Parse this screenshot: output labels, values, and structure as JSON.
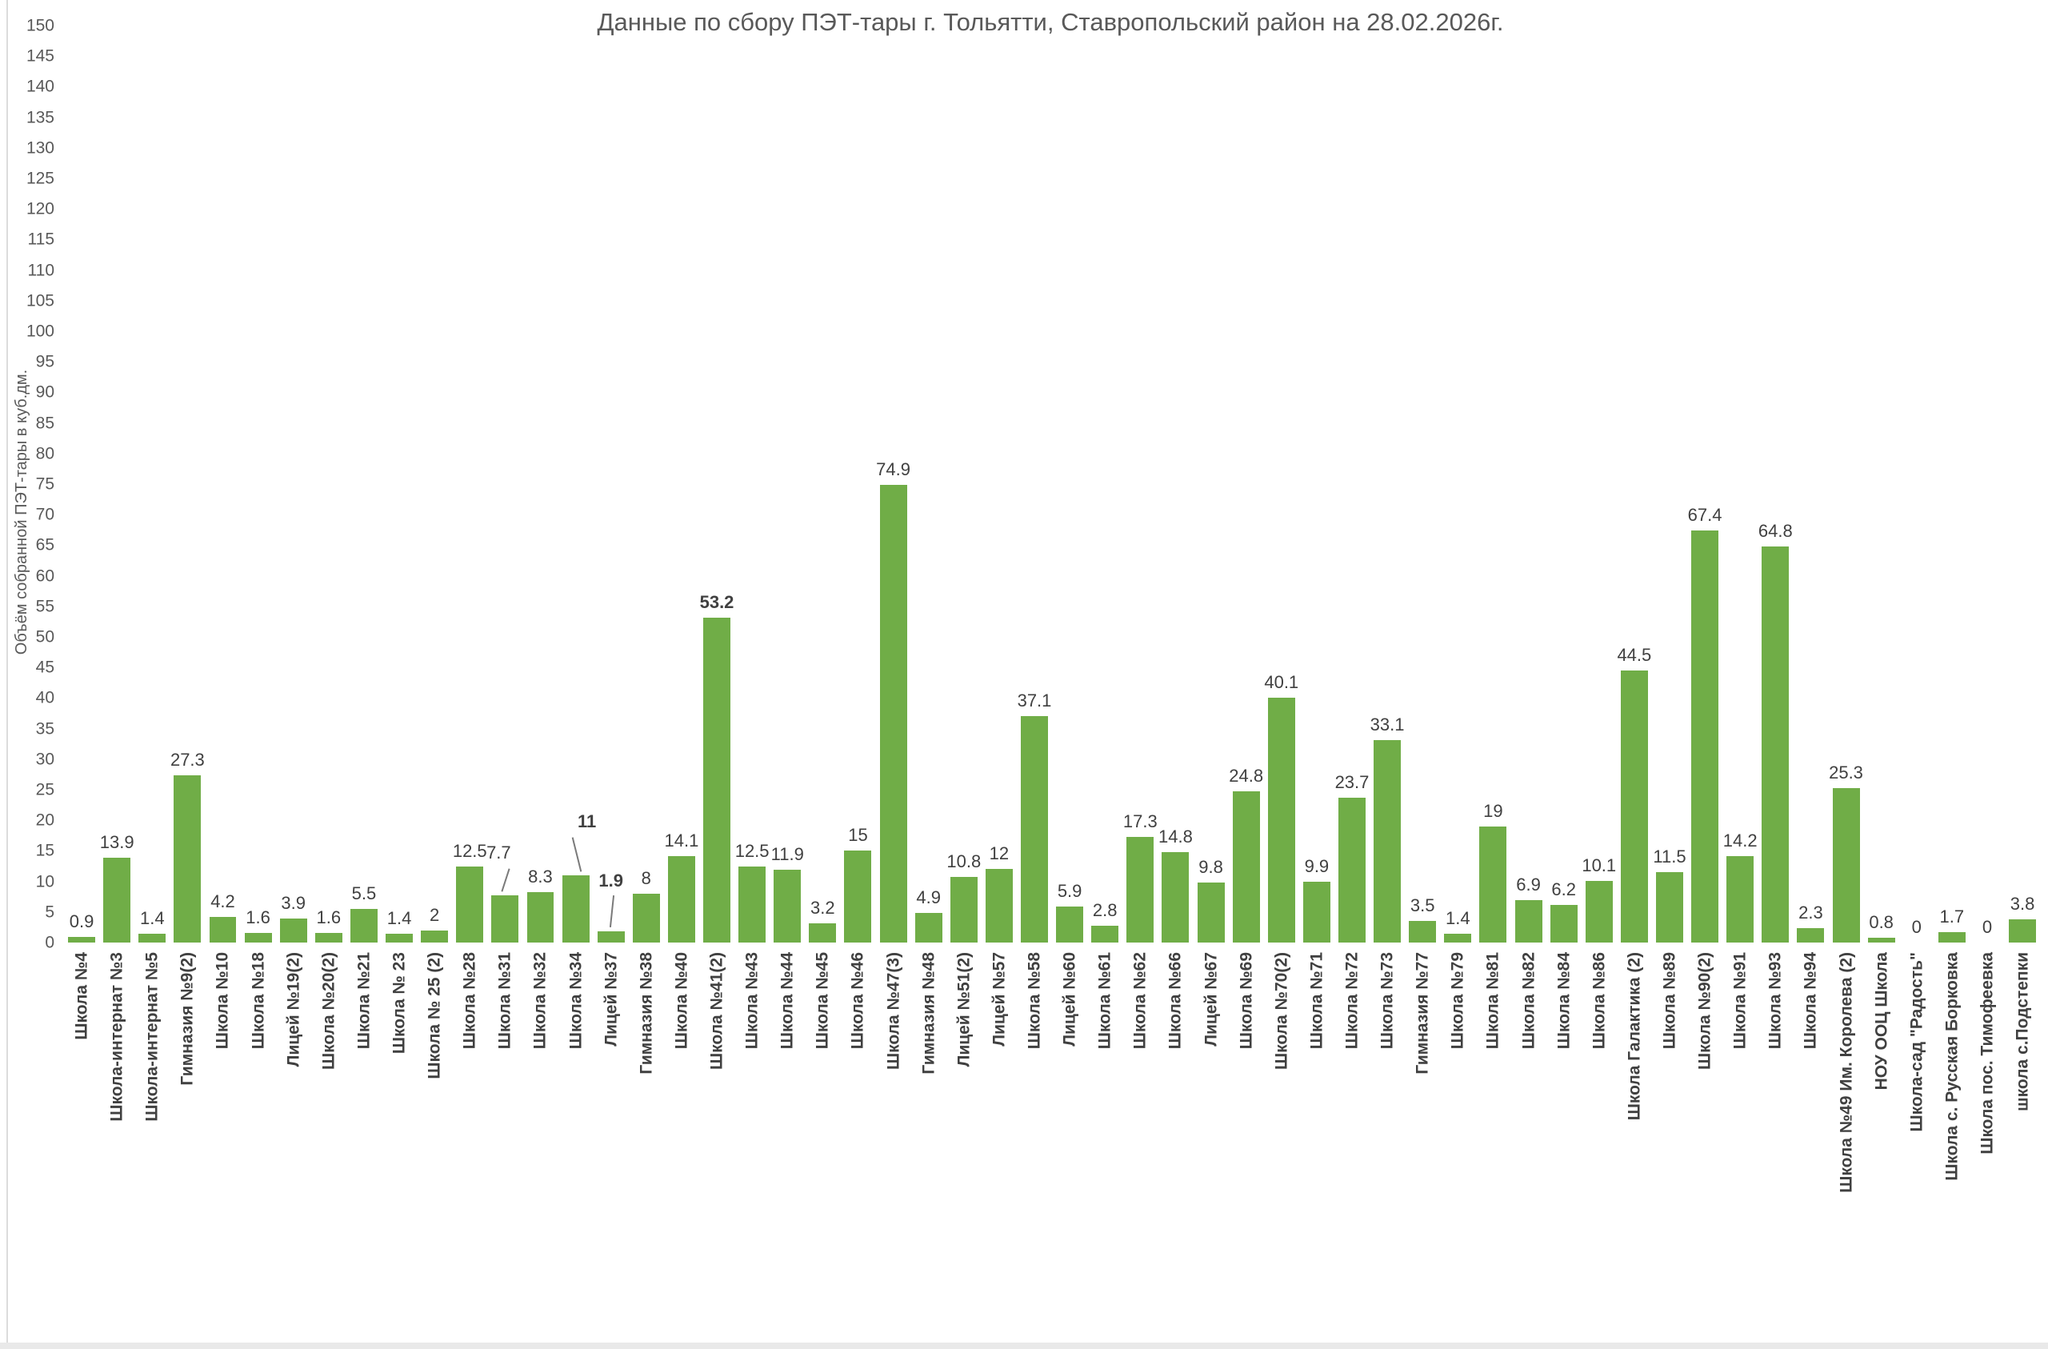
{
  "title": "Данные по сбору ПЭТ-тары г. Тольятти, Ставропольский район на 28.02.2026г.",
  "y_axis": {
    "label": "Объём собранной ПЭТ-тары в куб.дм.",
    "min": 0,
    "max": 150,
    "tick_step": 5
  },
  "bar_color": "#70AD47",
  "chart_data": {
    "type": "bar",
    "title": "Данные по сбору ПЭТ-тары г. Тольятти, Ставропольский район на 28.02.2026г.",
    "xlabel": "",
    "ylabel": "Объём собранной ПЭТ-тары в куб.дм.",
    "ylim": [
      0,
      150
    ],
    "grid": false,
    "legend": false,
    "categories": [
      "Школа №4",
      "Школа-интернат №3",
      "Школа-интернат №5",
      "Гимназия №9(2)",
      "Школа №10",
      "Школа №18",
      "Лицей №19(2)",
      "Школа №20(2)",
      "Школа №21",
      "Школа № 23",
      "Школа № 25 (2)",
      "Школа №28",
      "Школа №31",
      "Школа №32",
      "Школа №34",
      "Лицей №37",
      "Гимназия №38",
      "Школа №40",
      "Школа №41(2)",
      "Школа №43",
      "Школа №44",
      "Школа №45",
      "Школа №46",
      "Школа №47(3)",
      "Гимназия №48",
      "Лицей №51(2)",
      "Лицей №57",
      "Школа №58",
      "Лицей №60",
      "Школа №61",
      "Школа №62",
      "Школа №66",
      "Лицей №67",
      "Школа №69",
      "Школа №70(2)",
      "Школа №71",
      "Школа №72",
      "Школа №73",
      "Гимназия №77",
      "Школа №79",
      "Школа №81",
      "Школа №82",
      "Школа №84",
      "Школа №86",
      "Школа Галактика (2)",
      "Школа №89",
      "Школа №90(2)",
      "Школа №91",
      "Школа №93",
      "Школа №94",
      "Школа №49 Им. Королева (2)",
      "НОУ ООЦ Школа",
      "Школа-сад \"Радость\"",
      "Школа с. Русская Борковка",
      "Школа пос. Тимофеевка",
      "школа с.Подстепки"
    ],
    "values": [
      0.9,
      13.9,
      1.4,
      27.3,
      4.2,
      1.6,
      3.9,
      1.6,
      5.5,
      1.4,
      2,
      12.5,
      7.7,
      8.3,
      11,
      1.9,
      8,
      14.1,
      53.2,
      12.5,
      11.9,
      3.2,
      15,
      74.9,
      4.9,
      10.8,
      12,
      37.1,
      5.9,
      2.8,
      17.3,
      14.8,
      9.8,
      24.8,
      40.1,
      9.9,
      23.7,
      33.1,
      3.5,
      1.4,
      19,
      6.9,
      6.2,
      10.1,
      44.5,
      11.5,
      67.4,
      14.2,
      64.8,
      2.3,
      25.3,
      0.8,
      0,
      1.7,
      0,
      3.8
    ],
    "bold_value_indices": [
      14,
      15,
      18
    ]
  }
}
